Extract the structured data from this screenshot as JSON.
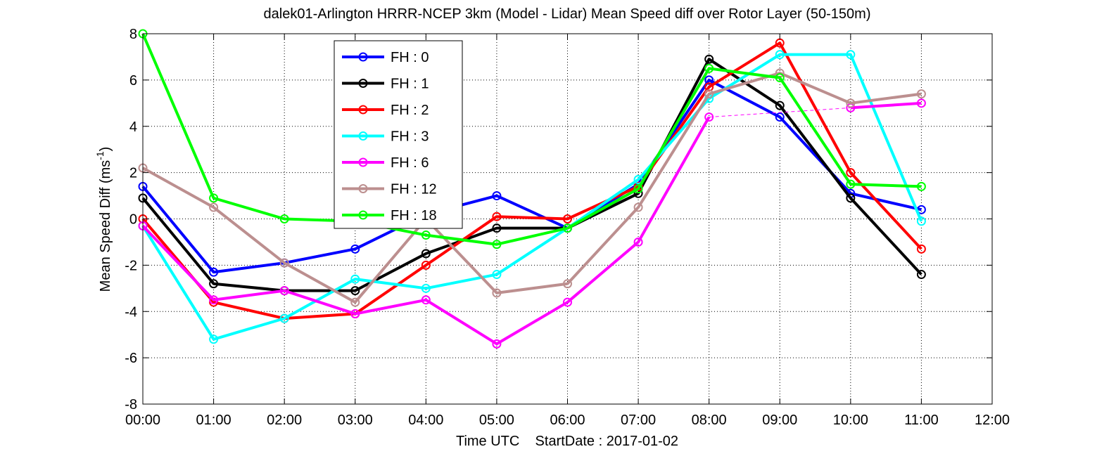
{
  "chart_data": {
    "type": "line",
    "title": "dalek01-Arlington HRRR-NCEP 3km (Model - Lidar) Mean Speed diff over Rotor Layer (50-150m)",
    "xlabel": "Time UTC    StartDate : 2017-01-02",
    "ylabel_main": "Mean Speed Diff (ms",
    "ylabel_sup": "-1",
    "ylabel_close": ")",
    "xlim": [
      0,
      12
    ],
    "ylim": [
      -8,
      8
    ],
    "grid": true,
    "legend_placement": "top-center-left",
    "x_ticks": [
      0,
      1,
      2,
      3,
      4,
      5,
      6,
      7,
      8,
      9,
      10,
      11,
      12
    ],
    "x_tick_labels": [
      "00:00",
      "01:00",
      "02:00",
      "03:00",
      "04:00",
      "05:00",
      "06:00",
      "07:00",
      "08:00",
      "09:00",
      "10:00",
      "11:00",
      "12:00"
    ],
    "y_ticks": [
      -8,
      -6,
      -4,
      -2,
      0,
      2,
      4,
      6,
      8
    ],
    "y_tick_labels": [
      "-8",
      "-6",
      "-4",
      "-2",
      "0",
      "2",
      "4",
      "6",
      "8"
    ],
    "series": [
      {
        "name": "FH : 0",
        "color": "#0000ff",
        "values": [
          1.4,
          -2.3,
          -1.9,
          -1.3,
          0.2,
          1.0,
          -0.4,
          1.5,
          6.0,
          4.4,
          1.1,
          0.4
        ]
      },
      {
        "name": "FH : 1",
        "color": "#000000",
        "values": [
          0.9,
          -2.8,
          -3.1,
          -3.1,
          -1.5,
          -0.4,
          -0.4,
          1.1,
          6.9,
          4.9,
          0.9,
          -2.4
        ]
      },
      {
        "name": "FH : 2",
        "color": "#ff0000",
        "values": [
          0.0,
          -3.6,
          -4.3,
          -4.1,
          -2.0,
          0.1,
          0.0,
          1.4,
          5.7,
          7.6,
          2.0,
          -1.3
        ]
      },
      {
        "name": "FH : 3",
        "color": "#00ffff",
        "values": [
          -0.3,
          -5.2,
          -4.3,
          -2.6,
          -3.0,
          -2.4,
          -0.4,
          1.7,
          5.2,
          7.1,
          7.1,
          -0.1
        ]
      },
      {
        "name": "FH : 6",
        "color": "#ff00ff",
        "values": [
          -0.3,
          -3.5,
          -3.1,
          -4.1,
          -3.5,
          -5.4,
          -3.6,
          -1.0,
          4.4,
          null,
          4.8,
          5.0
        ],
        "gap_dashed": [
          8,
          10
        ]
      },
      {
        "name": "FH : 12",
        "color": "#bc8f8f",
        "values": [
          2.2,
          0.5,
          -1.9,
          -3.6,
          0.0,
          -3.2,
          -2.8,
          0.5,
          5.4,
          6.3,
          5.0,
          5.4
        ]
      },
      {
        "name": "FH : 18",
        "color": "#00ff00",
        "values": [
          8.0,
          0.9,
          0.0,
          -0.1,
          -0.7,
          -1.1,
          -0.4,
          1.3,
          6.5,
          6.1,
          1.5,
          1.4
        ]
      }
    ]
  }
}
